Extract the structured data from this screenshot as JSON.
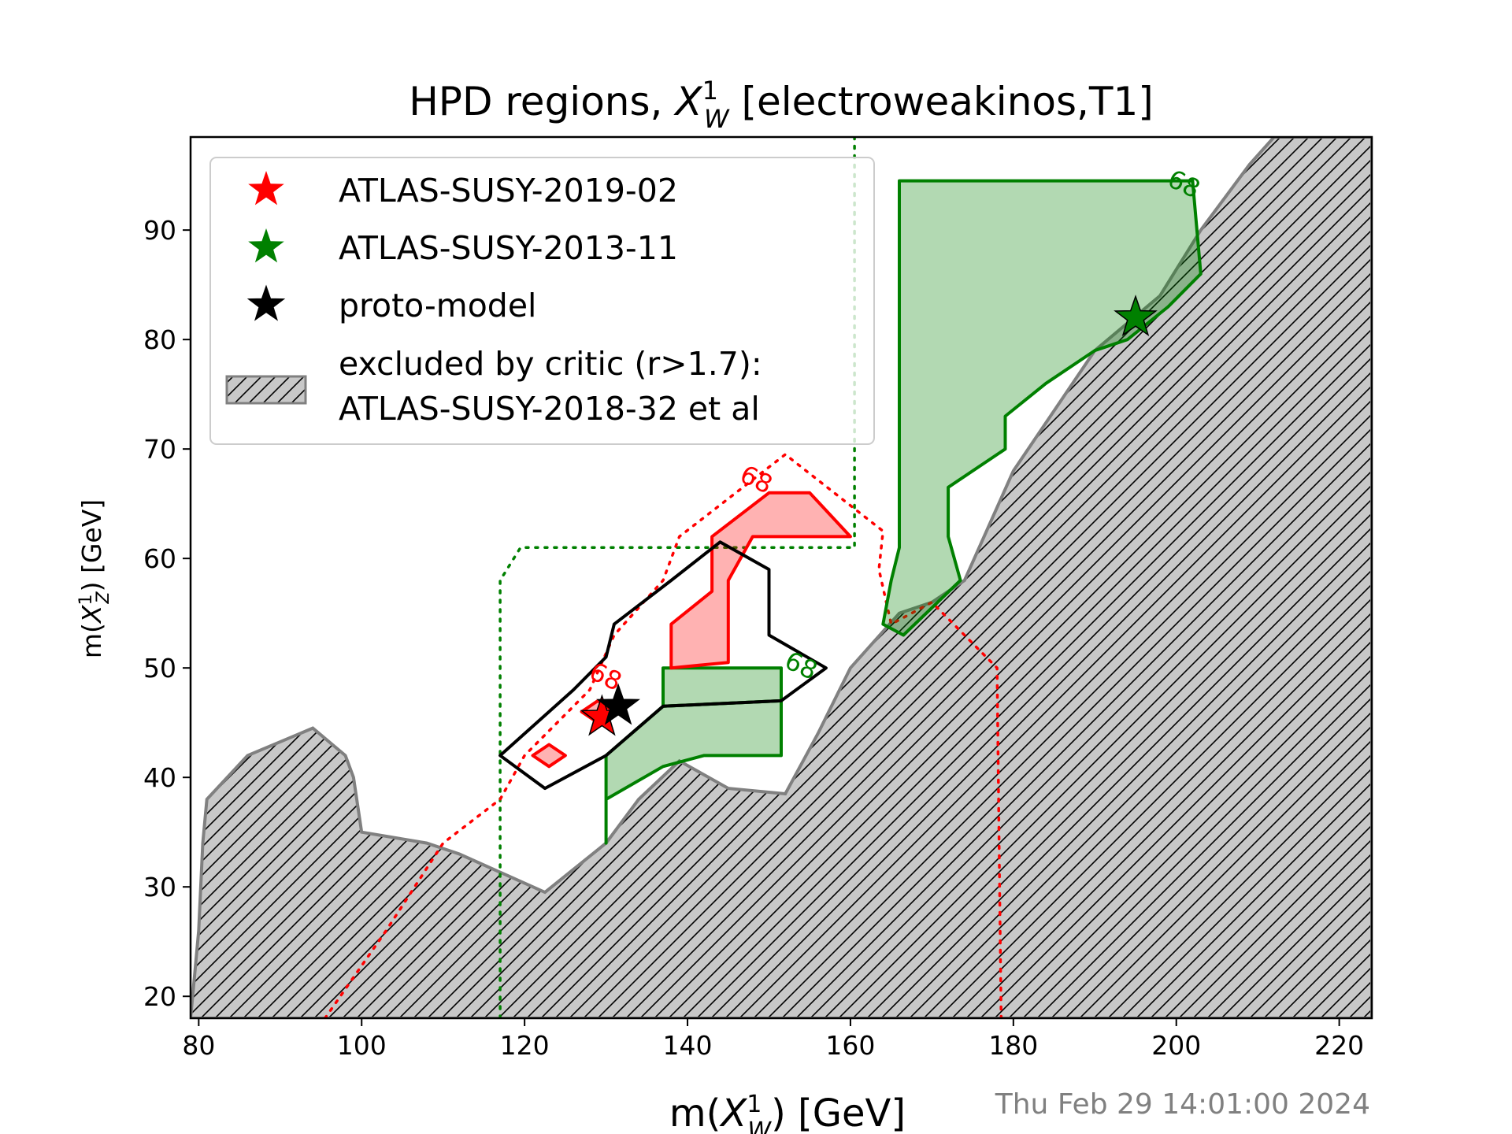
{
  "chart_data": {
    "type": "contour",
    "title": "HPD regions, X_W^1 [electroweakinos,T1]",
    "title_parts": {
      "prefix": "HPD regions, ",
      "symbol": "X",
      "sub": "W",
      "sup": "1",
      "suffix": " [electroweakinos,T1]"
    },
    "xlabel": "m(X_W^1) [GeV]",
    "xlabel_parts": {
      "prefix": "m(",
      "symbol": "X",
      "sub": "W",
      "sup": "1",
      "suffix": ") [GeV]"
    },
    "ylabel": "m(X_Z^1) [GeV]",
    "ylabel_parts": {
      "prefix": "m(",
      "symbol": "X",
      "sub": "Z",
      "sup": "1",
      "suffix": ") [GeV]"
    },
    "xlim": [
      79,
      224
    ],
    "ylim": [
      18,
      98.5
    ],
    "xticks": [
      80,
      100,
      120,
      140,
      160,
      180,
      200,
      220
    ],
    "yticks": [
      20,
      30,
      40,
      50,
      60,
      70,
      80,
      90
    ],
    "grid": false,
    "legend_position": "top-left",
    "timestamp": "Thu Feb 29 14:01:00 2024",
    "colors": {
      "red": "#ff0000",
      "green": "#008000",
      "black": "#000000",
      "excluded_fill": "#c8c8c8",
      "excluded_edge": "#808080"
    },
    "legend": [
      {
        "label": "ATLAS-SUSY-2019-02",
        "marker": "star",
        "color": "#ff0000"
      },
      {
        "label": "ATLAS-SUSY-2013-11",
        "marker": "star",
        "color": "#008000"
      },
      {
        "label": "proto-model",
        "marker": "star",
        "color": "#000000"
      },
      {
        "label": "excluded by critic (r>1.7):",
        "label2": "ATLAS-SUSY-2018-32 et al",
        "marker": "hatched-patch",
        "color": "#c8c8c8"
      }
    ],
    "excluded_region": [
      [
        79,
        18
      ],
      [
        79.5,
        22
      ],
      [
        80,
        26
      ],
      [
        80.5,
        34
      ],
      [
        81,
        38
      ],
      [
        86,
        42
      ],
      [
        94,
        44.5
      ],
      [
        98,
        42
      ],
      [
        99,
        40
      ],
      [
        100,
        35
      ],
      [
        108,
        34
      ],
      [
        112,
        33
      ],
      [
        122.5,
        29.5
      ],
      [
        130,
        34
      ],
      [
        134,
        38
      ],
      [
        139,
        41.5
      ],
      [
        145,
        39
      ],
      [
        152,
        38.5
      ],
      [
        156,
        44
      ],
      [
        160,
        50
      ],
      [
        166,
        55
      ],
      [
        170,
        56
      ],
      [
        174,
        58
      ],
      [
        180,
        68
      ],
      [
        190,
        79
      ],
      [
        198,
        84
      ],
      [
        203,
        90
      ],
      [
        209,
        96
      ],
      [
        212,
        98.5
      ],
      [
        224,
        98.5
      ],
      [
        224,
        18
      ]
    ],
    "regions": [
      {
        "analysis": "ATLAS-SUSY-2013-11",
        "color": "#008000",
        "style": "filled",
        "level_label": "68",
        "label_at": [
          200.5,
          93.5
        ],
        "points": [
          [
            166,
            94.5
          ],
          [
            172,
            94.5
          ],
          [
            189,
            94.5
          ],
          [
            202,
            94.5
          ],
          [
            203,
            86
          ],
          [
            199,
            83
          ],
          [
            194,
            80
          ],
          [
            190,
            79
          ],
          [
            184,
            76
          ],
          [
            179,
            73
          ],
          [
            179,
            70
          ],
          [
            172,
            66.5
          ],
          [
            172,
            62
          ],
          [
            173.5,
            58
          ],
          [
            166.5,
            53
          ],
          [
            164,
            54
          ],
          [
            165,
            58
          ],
          [
            166,
            61
          ],
          [
            166,
            94.5
          ]
        ]
      },
      {
        "analysis": "ATLAS-SUSY-2013-11",
        "color": "#008000",
        "style": "filled",
        "level_label": "68",
        "label_at": [
          153.5,
          49.5
        ],
        "points": [
          [
            137,
            50
          ],
          [
            151.5,
            50
          ],
          [
            151.5,
            47
          ],
          [
            137,
            46.5
          ],
          [
            137,
            50
          ]
        ]
      },
      {
        "analysis": "ATLAS-SUSY-2013-11",
        "color": "#008000",
        "style": "filled",
        "level_label": "",
        "points": [
          [
            130,
            38
          ],
          [
            137,
            41
          ],
          [
            142,
            42
          ],
          [
            151.5,
            42
          ],
          [
            151.5,
            47
          ],
          [
            137,
            46.5
          ],
          [
            130,
            42
          ],
          [
            130,
            34
          ],
          [
            130,
            38
          ]
        ]
      },
      {
        "analysis": "ATLAS-SUSY-2019-02",
        "color": "#ff0000",
        "style": "filled",
        "level_label": "68",
        "label_at": [
          148,
          66.5
        ],
        "points": [
          [
            143,
            62
          ],
          [
            150,
            66
          ],
          [
            155,
            66
          ],
          [
            160,
            62
          ],
          [
            148,
            62
          ],
          [
            145,
            58
          ],
          [
            145,
            50.5
          ],
          [
            138,
            50
          ],
          [
            138,
            54
          ],
          [
            143,
            57
          ],
          [
            143,
            62
          ]
        ]
      },
      {
        "analysis": "ATLAS-SUSY-2019-02",
        "color": "#ff0000",
        "style": "filled",
        "level_label": "68",
        "label_at": [
          129.5,
          48.5
        ],
        "points": [
          [
            127,
            46
          ],
          [
            129,
            45
          ],
          [
            131,
            46
          ],
          [
            129,
            47
          ],
          [
            127,
            46
          ]
        ]
      },
      {
        "analysis": "ATLAS-SUSY-2019-02",
        "color": "#ff0000",
        "style": "filled",
        "level_label": "",
        "points": [
          [
            121,
            42
          ],
          [
            123,
            43
          ],
          [
            125,
            42
          ],
          [
            123,
            41
          ],
          [
            121,
            42
          ]
        ]
      }
    ],
    "proto_model_contour": [
      [
        117,
        42
      ],
      [
        126,
        48
      ],
      [
        130,
        51
      ],
      [
        131,
        54
      ],
      [
        138,
        58
      ],
      [
        144,
        61.5
      ],
      [
        150,
        59
      ],
      [
        150,
        53
      ],
      [
        157,
        50
      ],
      [
        151.5,
        47
      ],
      [
        137,
        46.5
      ],
      [
        130,
        42
      ],
      [
        122.5,
        39
      ],
      [
        117,
        42
      ]
    ],
    "dotted_regions": [
      {
        "analysis": "ATLAS-SUSY-2013-11",
        "color": "#008000",
        "points": [
          [
            117,
            18
          ],
          [
            117,
            58
          ],
          [
            119.5,
            61
          ],
          [
            160.5,
            61
          ],
          [
            160.5,
            98.5
          ]
        ]
      },
      {
        "analysis": "ATLAS-SUSY-2019-02",
        "color": "#ff0000",
        "points": [
          [
            95.5,
            18
          ],
          [
            103,
            26
          ],
          [
            110,
            34
          ],
          [
            117,
            38
          ],
          [
            120,
            42
          ],
          [
            128,
            48
          ],
          [
            131,
            53
          ],
          [
            137,
            58
          ],
          [
            139,
            62
          ],
          [
            152,
            69.5
          ],
          [
            164,
            62.5
          ],
          [
            163.5,
            59
          ],
          [
            165,
            54
          ],
          [
            170,
            56
          ],
          [
            178,
            50
          ],
          [
            178.5,
            18
          ]
        ]
      }
    ],
    "points": [
      {
        "name": "ATLAS-SUSY-2019-02",
        "x": 129.5,
        "y": 45.5,
        "color": "#ff0000"
      },
      {
        "name": "ATLAS-SUSY-2013-11",
        "x": 195,
        "y": 82,
        "color": "#008000"
      },
      {
        "name": "proto-model",
        "x": 131.5,
        "y": 46.5,
        "color": "#000000"
      }
    ]
  }
}
